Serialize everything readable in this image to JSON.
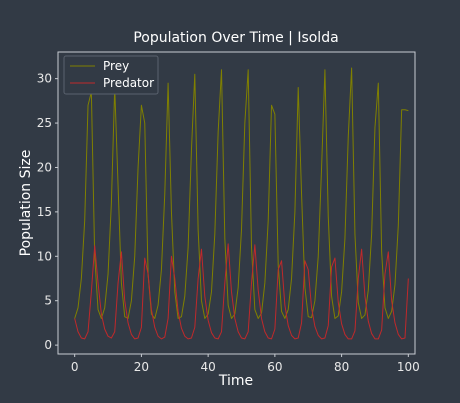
{
  "chart_data": {
    "type": "line",
    "title": "Population Over Time | Isolda",
    "xlabel": "Time",
    "ylabel": "Population Size",
    "xlim": [
      -5,
      102
    ],
    "ylim": [
      -1,
      33
    ],
    "xticks": [
      "0",
      "20",
      "40",
      "60",
      "80",
      "100"
    ],
    "yticks": [
      "0",
      "5",
      "10",
      "15",
      "20",
      "25",
      "30"
    ],
    "grid": false,
    "legend_position": "top-left",
    "x": [
      0,
      1,
      2,
      3,
      4,
      5,
      6,
      7,
      8,
      9,
      10,
      11,
      12,
      13,
      14,
      15,
      16,
      17,
      18,
      19,
      20,
      21,
      22,
      23,
      24,
      25,
      26,
      27,
      28,
      29,
      30,
      31,
      32,
      33,
      34,
      35,
      36,
      37,
      38,
      39,
      40,
      41,
      42,
      43,
      44,
      45,
      46,
      47,
      48,
      49,
      50,
      51,
      52,
      53,
      54,
      55,
      56,
      57,
      58,
      59,
      60,
      61,
      62,
      63,
      64,
      65,
      66,
      67,
      68,
      69,
      70,
      71,
      72,
      73,
      74,
      75,
      76,
      77,
      78,
      79,
      80,
      81,
      82,
      83,
      84,
      85,
      86,
      87,
      88,
      89,
      90,
      91,
      92,
      93,
      94,
      95,
      96,
      97,
      98,
      99,
      100
    ],
    "series": [
      {
        "name": "Prey",
        "color": "#808000",
        "values": [
          3.0,
          4.2,
          7.5,
          14.0,
          27.0,
          28.5,
          10.0,
          4.0,
          3.0,
          4.2,
          8.0,
          16.0,
          29.0,
          18.0,
          7.0,
          3.2,
          3.0,
          5.0,
          10.0,
          20.0,
          27.0,
          25.0,
          8.0,
          3.5,
          3.0,
          4.5,
          8.5,
          17.0,
          29.5,
          15.0,
          6.0,
          3.0,
          3.2,
          5.5,
          11.0,
          22.0,
          30.5,
          13.0,
          5.0,
          3.0,
          3.5,
          6.0,
          12.5,
          24.0,
          31.0,
          12.0,
          4.5,
          3.0,
          3.5,
          6.5,
          13.0,
          25.0,
          31.0,
          11.0,
          4.0,
          3.0,
          3.6,
          7.0,
          14.0,
          27.0,
          26.0,
          9.0,
          3.8,
          3.0,
          4.0,
          7.5,
          15.0,
          29.0,
          17.0,
          6.5,
          3.2,
          3.1,
          5.0,
          10.0,
          20.0,
          31.0,
          14.5,
          5.5,
          3.0,
          3.3,
          6.0,
          12.0,
          23.5,
          31.2,
          12.5,
          4.8,
          3.0,
          3.4,
          6.2,
          12.5,
          24.5,
          29.5,
          10.5,
          4.2,
          3.0,
          3.8,
          6.8,
          13.5,
          26.5,
          26.5,
          26.4
        ]
      },
      {
        "name": "Predator",
        "color": "#c0292b",
        "values": [
          3.0,
          1.5,
          0.8,
          0.7,
          1.5,
          6.0,
          11.2,
          7.0,
          3.5,
          1.8,
          1.0,
          0.8,
          1.5,
          7.0,
          10.5,
          5.0,
          2.5,
          1.2,
          0.7,
          0.8,
          2.0,
          9.8,
          8.0,
          4.0,
          2.0,
          1.0,
          0.7,
          0.9,
          3.0,
          10.0,
          7.5,
          3.8,
          1.9,
          1.0,
          0.7,
          0.8,
          2.0,
          7.5,
          10.8,
          5.5,
          2.8,
          1.4,
          0.8,
          0.7,
          1.5,
          7.0,
          11.4,
          6.0,
          3.0,
          1.5,
          0.8,
          0.7,
          1.5,
          7.0,
          11.3,
          6.2,
          3.0,
          1.5,
          0.8,
          0.7,
          1.8,
          8.5,
          9.5,
          4.5,
          2.2,
          1.1,
          0.7,
          0.8,
          2.5,
          9.5,
          8.5,
          4.2,
          2.1,
          1.1,
          0.7,
          0.8,
          2.2,
          8.8,
          9.8,
          4.8,
          2.4,
          1.2,
          0.7,
          0.7,
          1.6,
          7.5,
          10.8,
          5.5,
          2.7,
          1.3,
          0.7,
          0.7,
          1.7,
          8.0,
          10.5,
          5.0,
          2.5,
          1.2,
          0.7,
          0.8,
          7.5
        ]
      }
    ]
  }
}
